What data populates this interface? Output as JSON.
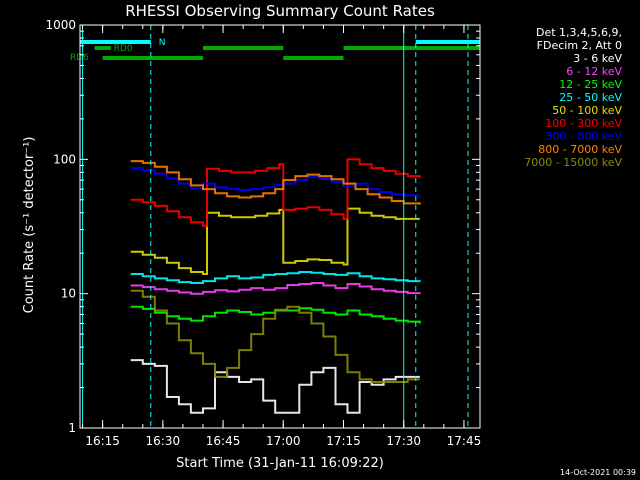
{
  "chart_data": {
    "type": "line",
    "title": "RHESSI Observing Summary Count Rates",
    "xlabel": "Start Time (31-Jan-11 16:09:22)",
    "ylabel": "Count Rate (s⁻¹ detector⁻¹)",
    "xlim": [
      "16:09:22",
      "17:49:00"
    ],
    "ylim": [
      1,
      1000
    ],
    "y_scale": "log",
    "x_ticks": [
      "16:15",
      "16:30",
      "16:45",
      "17:00",
      "17:15",
      "17:30",
      "17:45"
    ],
    "y_ticks": [
      "1",
      "10",
      "100",
      "1000"
    ],
    "timestamp": "14-Oct-2021 00:39",
    "legend_header": [
      "Det 1,3,4,5,6,9,",
      "FDecim 2, Att 0"
    ],
    "flags": [
      {
        "label": "N",
        "color": "#00ffff",
        "segments": [
          [
            "16:09:22",
            "16:27"
          ],
          [
            "17:33",
            "17:49"
          ]
        ]
      },
      {
        "label": "RD0",
        "color": "#00aa00",
        "segments": [
          [
            "16:13",
            "16:17"
          ],
          [
            "16:40",
            "17:00"
          ],
          [
            "17:15",
            "17:49"
          ]
        ]
      },
      {
        "label": "RD6",
        "color": "#00aa00",
        "segments": [
          [
            "16:15",
            "16:40"
          ],
          [
            "17:00",
            "17:15"
          ]
        ]
      }
    ],
    "vlines_solid": [
      "16:10",
      "17:30"
    ],
    "vlines_dashed": [
      "16:27",
      "17:33",
      "17:46"
    ],
    "series": [
      {
        "name": "3 - 6 keV",
        "color": "#ffffff",
        "times": [
          "16:22",
          "16:25",
          "16:28",
          "16:31",
          "16:34",
          "16:37",
          "16:40",
          "16:43",
          "16:46",
          "16:49",
          "16:52",
          "16:55",
          "16:58",
          "17:01",
          "17:04",
          "17:07",
          "17:10",
          "17:13",
          "17:16",
          "17:19",
          "17:22",
          "17:25",
          "17:28",
          "17:31",
          "17:34"
        ],
        "values": [
          3.2,
          3.0,
          2.9,
          1.7,
          1.5,
          1.3,
          1.4,
          2.6,
          2.4,
          2.2,
          2.3,
          1.6,
          1.3,
          1.3,
          2.1,
          2.6,
          2.8,
          1.5,
          1.3,
          2.2,
          2.1,
          2.3,
          2.4,
          2.4,
          2.4
        ]
      },
      {
        "name": "6 - 12 keV",
        "color": "#ff40ff",
        "times": [
          "16:22",
          "16:25",
          "16:28",
          "16:31",
          "16:34",
          "16:37",
          "16:40",
          "16:43",
          "16:46",
          "16:49",
          "16:52",
          "16:55",
          "16:58",
          "17:01",
          "17:04",
          "17:07",
          "17:10",
          "17:13",
          "17:16",
          "17:19",
          "17:22",
          "17:25",
          "17:28",
          "17:31",
          "17:34"
        ],
        "values": [
          11.5,
          11.2,
          10.8,
          10.5,
          10.2,
          10.0,
          10.3,
          10.6,
          10.4,
          10.7,
          11.0,
          10.7,
          11.0,
          11.6,
          11.8,
          12.0,
          11.5,
          11.0,
          11.8,
          11.3,
          10.8,
          10.5,
          10.3,
          10.1,
          10.0
        ]
      },
      {
        "name": "12 - 25 keV",
        "color": "#00ff00",
        "times": [
          "16:22",
          "16:25",
          "16:28",
          "16:31",
          "16:34",
          "16:37",
          "16:40",
          "16:43",
          "16:46",
          "16:49",
          "16:52",
          "16:55",
          "16:58",
          "17:01",
          "17:04",
          "17:07",
          "17:10",
          "17:13",
          "17:16",
          "17:19",
          "17:22",
          "17:25",
          "17:28",
          "17:31",
          "17:34"
        ],
        "values": [
          8.0,
          7.7,
          7.2,
          6.8,
          6.5,
          6.3,
          6.8,
          7.2,
          7.5,
          7.3,
          7.0,
          7.2,
          7.5,
          7.5,
          7.8,
          7.6,
          7.2,
          7.0,
          7.5,
          7.0,
          6.8,
          6.5,
          6.3,
          6.2,
          6.0
        ]
      },
      {
        "name": "25 - 50 keV",
        "color": "#00ffff",
        "times": [
          "16:22",
          "16:25",
          "16:28",
          "16:31",
          "16:34",
          "16:37",
          "16:40",
          "16:43",
          "16:46",
          "16:49",
          "16:52",
          "16:55",
          "16:58",
          "17:01",
          "17:04",
          "17:07",
          "17:10",
          "17:13",
          "17:16",
          "17:19",
          "17:22",
          "17:25",
          "17:28",
          "17:31",
          "17:34"
        ],
        "values": [
          14.0,
          13.5,
          13.0,
          12.6,
          12.2,
          12.0,
          12.4,
          13.0,
          13.5,
          13.0,
          13.2,
          13.8,
          14.0,
          14.2,
          14.5,
          14.3,
          14.0,
          13.8,
          14.2,
          13.5,
          13.0,
          12.8,
          12.6,
          12.4,
          12.3
        ]
      },
      {
        "name": "50 - 100 keV",
        "color": "#e0e000",
        "times": [
          "16:22",
          "16:25",
          "16:28",
          "16:31",
          "16:34",
          "16:37",
          "16:40",
          "16:41",
          "16:44",
          "16:47",
          "16:50",
          "16:53",
          "16:56",
          "16:59",
          "17:00",
          "17:03",
          "17:06",
          "17:09",
          "17:12",
          "17:15",
          "17:16",
          "17:19",
          "17:22",
          "17:25",
          "17:28",
          "17:31",
          "17:34"
        ],
        "values": [
          20.5,
          19.5,
          18.5,
          17.0,
          15.5,
          14.5,
          14.0,
          40.0,
          38.0,
          37.0,
          37.0,
          38.0,
          39.5,
          42.0,
          17.0,
          17.5,
          18.0,
          17.8,
          17.0,
          16.5,
          43.0,
          40.0,
          38.0,
          37.0,
          36.0,
          36.0,
          36.0
        ]
      },
      {
        "name": "100 - 300 keV",
        "color": "#ff0000",
        "times": [
          "16:22",
          "16:25",
          "16:28",
          "16:31",
          "16:34",
          "16:37",
          "16:40",
          "16:41",
          "16:44",
          "16:47",
          "16:50",
          "16:53",
          "16:56",
          "16:59",
          "17:00",
          "17:03",
          "17:06",
          "17:09",
          "17:12",
          "17:15",
          "17:16",
          "17:19",
          "17:22",
          "17:25",
          "17:28",
          "17:31",
          "17:34"
        ],
        "values": [
          50.0,
          48.0,
          45.0,
          41.0,
          37.0,
          34.0,
          32.0,
          85.0,
          82.0,
          80.0,
          80.0,
          82.0,
          86.0,
          92.0,
          42.0,
          43.0,
          44.0,
          42.0,
          39.0,
          36.0,
          100.0,
          92.0,
          86.0,
          82.0,
          78.0,
          75.0,
          73.0
        ]
      },
      {
        "name": "300 - 800 keV",
        "color": "#0000ff",
        "times": [
          "16:22",
          "16:25",
          "16:28",
          "16:31",
          "16:34",
          "16:37",
          "16:40",
          "16:43",
          "16:46",
          "16:49",
          "16:52",
          "16:55",
          "16:58",
          "17:00",
          "17:03",
          "17:06",
          "17:09",
          "17:12",
          "17:15",
          "17:18",
          "17:21",
          "17:24",
          "17:27",
          "17:30",
          "17:34"
        ],
        "values": [
          86.0,
          83.0,
          78.0,
          72.0,
          66.0,
          61.0,
          66.0,
          62.0,
          60.0,
          59.0,
          60.0,
          62.0,
          65.0,
          66.0,
          70.0,
          74.0,
          72.0,
          68.0,
          63.0,
          66.0,
          60.0,
          57.0,
          55.0,
          54.0,
          54.0
        ]
      },
      {
        "name": "800 - 7000 keV",
        "color": "#ff8000",
        "times": [
          "16:22",
          "16:25",
          "16:28",
          "16:31",
          "16:34",
          "16:37",
          "16:40",
          "16:43",
          "16:46",
          "16:49",
          "16:52",
          "16:55",
          "16:58",
          "17:00",
          "17:03",
          "17:06",
          "17:09",
          "17:12",
          "17:15",
          "17:18",
          "17:21",
          "17:24",
          "17:27",
          "17:30",
          "17:34"
        ],
        "values": [
          97.0,
          94.0,
          88.0,
          80.0,
          71.0,
          64.0,
          60.0,
          56.0,
          53.0,
          52.0,
          53.0,
          56.0,
          60.0,
          70.0,
          75.0,
          77.0,
          75.0,
          71.0,
          66.0,
          60.0,
          55.0,
          52.0,
          49.0,
          47.0,
          46.0
        ]
      },
      {
        "name": "7000 - 15000 keV",
        "color": "#8b8b00",
        "times": [
          "16:22",
          "16:25",
          "16:28",
          "16:31",
          "16:34",
          "16:37",
          "16:40",
          "16:43",
          "16:46",
          "16:49",
          "16:52",
          "16:55",
          "16:58",
          "17:01",
          "17:04",
          "17:07",
          "17:10",
          "17:13",
          "17:16",
          "17:19",
          "17:22",
          "17:25",
          "17:28",
          "17:31",
          "17:34"
        ],
        "values": [
          10.5,
          9.5,
          7.5,
          6.0,
          4.5,
          3.6,
          3.0,
          2.4,
          2.8,
          3.8,
          5.0,
          6.5,
          7.6,
          8.0,
          7.2,
          6.0,
          4.8,
          3.5,
          2.6,
          2.3,
          2.2,
          2.2,
          2.2,
          2.3,
          2.3
        ]
      }
    ]
  }
}
